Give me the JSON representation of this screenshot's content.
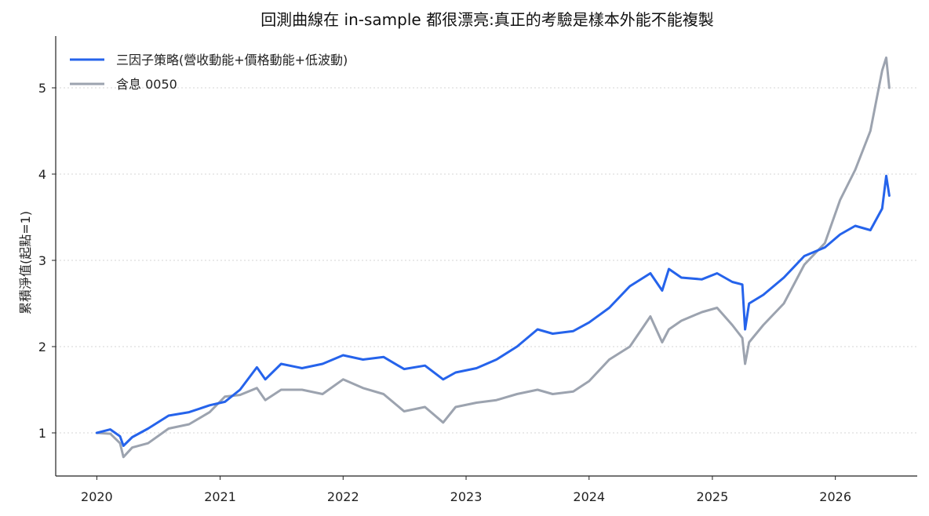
{
  "chart_data": {
    "type": "line",
    "title": "回測曲線在 in-sample 都很漂亮:真正的考驗是樣本外能不能複製",
    "xlabel": "",
    "ylabel": "累積淨值(起點=1)",
    "x_ticks": [
      "2020",
      "2021",
      "2022",
      "2023",
      "2024",
      "2025",
      "2026"
    ],
    "y_ticks": [
      "1",
      "2",
      "3",
      "4",
      "5"
    ],
    "xlim": [
      "2019-09-01",
      "2026-09-01"
    ],
    "ylim": [
      0.5,
      5.6
    ],
    "grid": "y-dotted",
    "legend_position": "top-left",
    "series": [
      {
        "name": "三因子策略(營收動能+價格動能+低波動)",
        "color": "#2563eb",
        "points": [
          [
            "2020-01-01",
            1.0
          ],
          [
            "2020-02-10",
            1.04
          ],
          [
            "2020-03-10",
            0.96
          ],
          [
            "2020-03-20",
            0.85
          ],
          [
            "2020-04-15",
            0.95
          ],
          [
            "2020-06-01",
            1.05
          ],
          [
            "2020-08-01",
            1.2
          ],
          [
            "2020-10-01",
            1.24
          ],
          [
            "2020-12-01",
            1.32
          ],
          [
            "2021-01-15",
            1.36
          ],
          [
            "2021-03-01",
            1.5
          ],
          [
            "2021-04-20",
            1.76
          ],
          [
            "2021-05-15",
            1.62
          ],
          [
            "2021-07-01",
            1.8
          ],
          [
            "2021-09-01",
            1.75
          ],
          [
            "2021-11-01",
            1.8
          ],
          [
            "2022-01-01",
            1.9
          ],
          [
            "2022-03-01",
            1.85
          ],
          [
            "2022-05-01",
            1.88
          ],
          [
            "2022-07-01",
            1.74
          ],
          [
            "2022-09-01",
            1.78
          ],
          [
            "2022-10-25",
            1.62
          ],
          [
            "2022-12-01",
            1.7
          ],
          [
            "2023-02-01",
            1.75
          ],
          [
            "2023-04-01",
            1.85
          ],
          [
            "2023-06-01",
            2.0
          ],
          [
            "2023-08-01",
            2.2
          ],
          [
            "2023-09-15",
            2.15
          ],
          [
            "2023-11-15",
            2.18
          ],
          [
            "2024-01-01",
            2.28
          ],
          [
            "2024-03-01",
            2.45
          ],
          [
            "2024-05-01",
            2.7
          ],
          [
            "2024-07-01",
            2.85
          ],
          [
            "2024-08-05",
            2.65
          ],
          [
            "2024-08-25",
            2.9
          ],
          [
            "2024-10-01",
            2.8
          ],
          [
            "2024-12-01",
            2.78
          ],
          [
            "2025-01-15",
            2.85
          ],
          [
            "2025-03-01",
            2.75
          ],
          [
            "2025-03-31",
            2.72
          ],
          [
            "2025-04-08",
            2.2
          ],
          [
            "2025-04-20",
            2.5
          ],
          [
            "2025-06-01",
            2.6
          ],
          [
            "2025-08-01",
            2.8
          ],
          [
            "2025-10-01",
            3.05
          ],
          [
            "2025-12-01",
            3.15
          ],
          [
            "2026-01-15",
            3.3
          ],
          [
            "2026-03-01",
            3.4
          ],
          [
            "2026-04-15",
            3.35
          ],
          [
            "2026-05-20",
            3.6
          ],
          [
            "2026-06-01",
            3.98
          ],
          [
            "2026-06-10",
            3.75
          ]
        ]
      },
      {
        "name": "含息 0050",
        "color": "#9ca3af",
        "points": [
          [
            "2020-01-01",
            1.0
          ],
          [
            "2020-02-10",
            0.99
          ],
          [
            "2020-03-10",
            0.88
          ],
          [
            "2020-03-20",
            0.72
          ],
          [
            "2020-04-15",
            0.83
          ],
          [
            "2020-06-01",
            0.88
          ],
          [
            "2020-08-01",
            1.05
          ],
          [
            "2020-10-01",
            1.1
          ],
          [
            "2020-12-01",
            1.24
          ],
          [
            "2021-01-15",
            1.42
          ],
          [
            "2021-03-01",
            1.44
          ],
          [
            "2021-04-20",
            1.52
          ],
          [
            "2021-05-15",
            1.38
          ],
          [
            "2021-07-01",
            1.5
          ],
          [
            "2021-09-01",
            1.5
          ],
          [
            "2021-11-01",
            1.45
          ],
          [
            "2022-01-01",
            1.62
          ],
          [
            "2022-03-01",
            1.52
          ],
          [
            "2022-05-01",
            1.45
          ],
          [
            "2022-07-01",
            1.25
          ],
          [
            "2022-09-01",
            1.3
          ],
          [
            "2022-10-25",
            1.12
          ],
          [
            "2022-12-01",
            1.3
          ],
          [
            "2023-02-01",
            1.35
          ],
          [
            "2023-04-01",
            1.38
          ],
          [
            "2023-06-01",
            1.45
          ],
          [
            "2023-08-01",
            1.5
          ],
          [
            "2023-09-15",
            1.45
          ],
          [
            "2023-11-15",
            1.48
          ],
          [
            "2024-01-01",
            1.6
          ],
          [
            "2024-03-01",
            1.85
          ],
          [
            "2024-05-01",
            2.0
          ],
          [
            "2024-07-01",
            2.35
          ],
          [
            "2024-08-05",
            2.05
          ],
          [
            "2024-08-25",
            2.2
          ],
          [
            "2024-10-01",
            2.3
          ],
          [
            "2024-12-01",
            2.4
          ],
          [
            "2025-01-15",
            2.45
          ],
          [
            "2025-03-01",
            2.25
          ],
          [
            "2025-03-31",
            2.1
          ],
          [
            "2025-04-08",
            1.8
          ],
          [
            "2025-04-20",
            2.05
          ],
          [
            "2025-06-01",
            2.25
          ],
          [
            "2025-08-01",
            2.5
          ],
          [
            "2025-10-01",
            2.95
          ],
          [
            "2025-12-01",
            3.2
          ],
          [
            "2026-01-15",
            3.7
          ],
          [
            "2026-03-01",
            4.05
          ],
          [
            "2026-04-15",
            4.5
          ],
          [
            "2026-05-20",
            5.2
          ],
          [
            "2026-06-01",
            5.35
          ],
          [
            "2026-06-10",
            5.0
          ]
        ]
      }
    ]
  }
}
